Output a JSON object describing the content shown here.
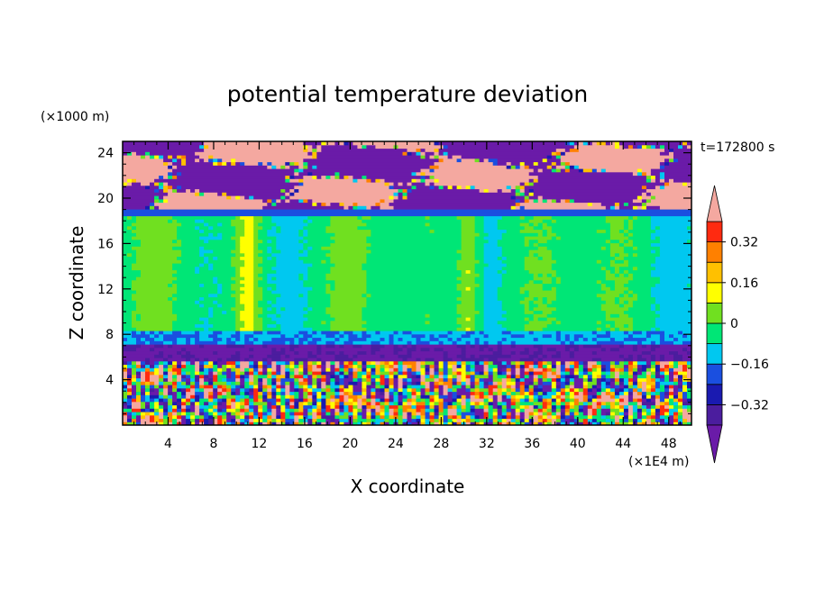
{
  "chart_data": {
    "type": "heatmap",
    "title": "potential temperature deviation",
    "time_label": "t=172800 s",
    "xlabel": "X coordinate",
    "ylabel": "Z coordinate",
    "x_unit": "(×1E4 m)",
    "y_unit": "(×1000 m)",
    "xlim": [
      0,
      50
    ],
    "ylim": [
      0,
      25
    ],
    "x_ticks": [
      4,
      8,
      12,
      16,
      20,
      24,
      28,
      32,
      36,
      40,
      44,
      48
    ],
    "y_ticks": [
      4,
      8,
      12,
      16,
      20,
      24
    ],
    "colorbar": {
      "levels": [
        -0.4,
        -0.32,
        -0.24,
        -0.16,
        -0.08,
        0,
        0.08,
        0.16,
        0.24,
        0.32,
        0.4
      ],
      "labeled_levels": [
        0.32,
        0.16,
        0,
        -0.16,
        -0.32
      ],
      "labels": [
        "0.32",
        "0.16",
        "0",
        "−0.16",
        "−0.32"
      ],
      "colors": [
        "#4b1d9e",
        "#1a1ab0",
        "#1a4fe0",
        "#00c8f0",
        "#00e676",
        "#70e020",
        "#ffff00",
        "#ffc000",
        "#ff8000",
        "#ff2a10"
      ],
      "under_color": "#6a1ba8",
      "over_color": "#f4a8a0"
    },
    "layers": [
      {
        "z": [
          0,
          7
        ],
        "description": "turbulent mixed layer, values spanning -0.4 to 0.4"
      },
      {
        "z": [
          7,
          19
        ],
        "value": -0.04
      },
      {
        "z": [
          19,
          25
        ],
        "description": "alternating over-range and under-range patches"
      }
    ]
  }
}
